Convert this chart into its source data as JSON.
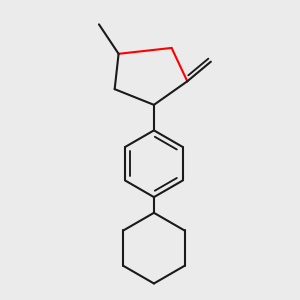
{
  "background_color": "#ebebeb",
  "bond_color": "#1a1a1a",
  "oxygen_color": "#ff0000",
  "line_width": 1.5,
  "figsize": [
    3.0,
    3.0
  ],
  "dpi": 100
}
